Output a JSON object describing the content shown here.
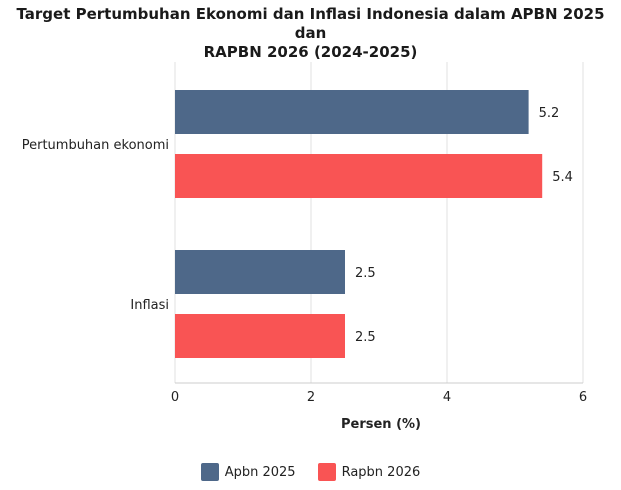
{
  "chart_data": {
    "type": "bar",
    "orientation": "horizontal",
    "title_line1": "Target Pertumbuhan Ekonomi dan Inflasi Indonesia dalam APBN 2025 dan",
    "title_line2": "RAPBN 2026 (2024-2025)",
    "categories": [
      "Pertumbuhan ekonomi",
      "Inflasi"
    ],
    "series": [
      {
        "name": "Apbn 2025",
        "values": [
          5.2,
          2.5
        ],
        "color": "#4e6889"
      },
      {
        "name": "Rapbn 2026",
        "values": [
          5.4,
          2.5
        ],
        "color": "#f95454"
      }
    ],
    "xlabel": "Persen (%)",
    "ylabel": "",
    "xlim": [
      0,
      6
    ],
    "xticks": [
      0,
      2,
      4,
      6
    ],
    "grid": true,
    "data_labels": true,
    "legend_position": "bottom"
  }
}
